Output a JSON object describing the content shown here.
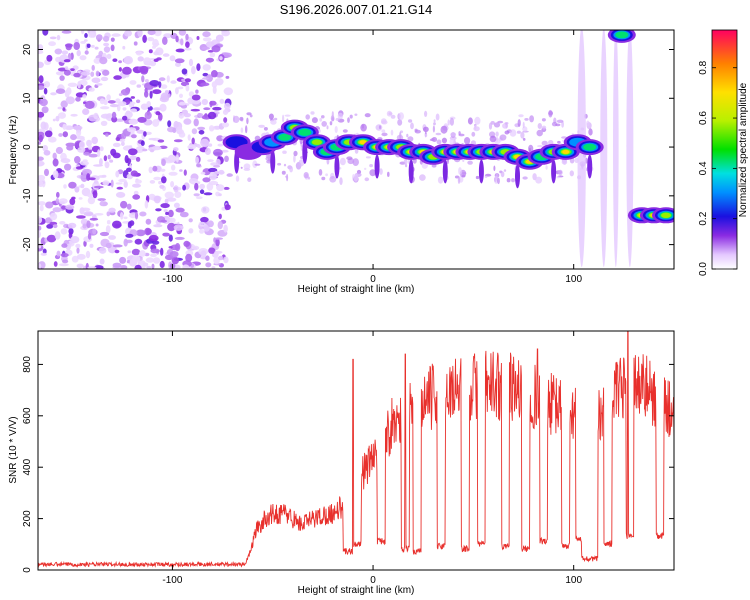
{
  "title": "S196.2026.007.01.21.G14",
  "chart_data": [
    {
      "type": "heatmap",
      "xlabel": "Height of straight line (km)",
      "ylabel": "Frequency (Hz)",
      "xlim": [
        -167,
        150
      ],
      "ylim": [
        -25,
        24
      ],
      "xticks": [
        -100,
        0,
        100
      ],
      "yticks": [
        20,
        10,
        0,
        -10,
        -20
      ],
      "colorbar": {
        "label": "Normalized spectral amplitude",
        "range": [
          0,
          0.95
        ],
        "ticks": [
          0.0,
          0.2,
          0.4,
          0.6,
          0.8
        ]
      },
      "ridge": [
        {
          "x": -68,
          "f": 1,
          "a": 0.25
        },
        {
          "x": -62,
          "f": -1,
          "a": 0.2
        },
        {
          "x": -55,
          "f": 0,
          "a": 0.3
        },
        {
          "x": -50,
          "f": 1,
          "a": 0.35
        },
        {
          "x": -44,
          "f": 2,
          "a": 0.45
        },
        {
          "x": -39,
          "f": 4,
          "a": 0.6
        },
        {
          "x": -34,
          "f": 3,
          "a": 0.55
        },
        {
          "x": -28,
          "f": 1,
          "a": 0.6
        },
        {
          "x": -23,
          "f": -1,
          "a": 0.5
        },
        {
          "x": -18,
          "f": 0,
          "a": 0.55
        },
        {
          "x": -12,
          "f": 1,
          "a": 0.7
        },
        {
          "x": -5,
          "f": 1,
          "a": 0.75
        },
        {
          "x": 2,
          "f": 0,
          "a": 0.8
        },
        {
          "x": 8,
          "f": 0,
          "a": 0.85
        },
        {
          "x": 14,
          "f": 0,
          "a": 0.7
        },
        {
          "x": 19,
          "f": -1,
          "a": 0.75
        },
        {
          "x": 25,
          "f": -1,
          "a": 0.8
        },
        {
          "x": 30,
          "f": -2,
          "a": 0.6
        },
        {
          "x": 36,
          "f": -1,
          "a": 0.8
        },
        {
          "x": 42,
          "f": -1,
          "a": 0.85
        },
        {
          "x": 48,
          "f": -1,
          "a": 0.75
        },
        {
          "x": 54,
          "f": -1,
          "a": 0.6
        },
        {
          "x": 60,
          "f": -1,
          "a": 0.8
        },
        {
          "x": 66,
          "f": -1,
          "a": 0.7
        },
        {
          "x": 72,
          "f": -2,
          "a": 0.75
        },
        {
          "x": 78,
          "f": -3,
          "a": 0.8
        },
        {
          "x": 84,
          "f": -2,
          "a": 0.55
        },
        {
          "x": 90,
          "f": -1,
          "a": 0.6
        },
        {
          "x": 96,
          "f": -1,
          "a": 0.75
        },
        {
          "x": 102,
          "f": 1,
          "a": 0.35
        },
        {
          "x": 108,
          "f": 0,
          "a": 0.45
        }
      ],
      "noise_xmax": -72,
      "upper_feature": {
        "x": 124,
        "f": 23,
        "a": 0.5
      },
      "low_branch": [
        {
          "x": 134,
          "f": -14,
          "a": 0.8
        },
        {
          "x": 140,
          "f": -14,
          "a": 0.75
        },
        {
          "x": 146,
          "f": -14,
          "a": 0.7
        }
      ]
    },
    {
      "type": "line",
      "xlabel": "Height of straight line (km)",
      "ylabel": "SNR (10 * V/V)",
      "xlim": [
        -167,
        150
      ],
      "ylim": [
        0,
        930
      ],
      "xticks": [
        -100,
        0,
        100
      ],
      "yticks": [
        0,
        200,
        400,
        600,
        800
      ],
      "color": "#e8302c",
      "envelope": [
        [
          -167,
          22
        ],
        [
          -80,
          22
        ],
        [
          -64,
          22
        ],
        [
          -62,
          60
        ],
        [
          -58,
          180
        ],
        [
          -52,
          240
        ],
        [
          -44,
          250
        ],
        [
          -36,
          200
        ],
        [
          -28,
          230
        ],
        [
          -20,
          250
        ],
        [
          -12,
          300
        ],
        [
          -8,
          400
        ],
        [
          -2,
          460
        ],
        [
          4,
          560
        ],
        [
          10,
          640
        ],
        [
          20,
          700
        ],
        [
          30,
          760
        ],
        [
          40,
          790
        ],
        [
          50,
          800
        ],
        [
          60,
          810
        ],
        [
          70,
          800
        ],
        [
          80,
          760
        ],
        [
          90,
          720
        ],
        [
          100,
          690
        ],
        [
          106,
          640
        ],
        [
          112,
          680
        ],
        [
          118,
          740
        ],
        [
          124,
          790
        ],
        [
          130,
          830
        ],
        [
          140,
          770
        ],
        [
          150,
          690
        ]
      ],
      "dips": [
        {
          "x": -12,
          "w": 3,
          "v": 60
        },
        {
          "x": -8,
          "w": 2,
          "v": 90
        },
        {
          "x": 4,
          "w": 2,
          "v": 100
        },
        {
          "x": 16,
          "w": 2,
          "v": 70
        },
        {
          "x": 22,
          "w": 2,
          "v": 60
        },
        {
          "x": 34,
          "w": 2,
          "v": 80
        },
        {
          "x": 46,
          "w": 2,
          "v": 70
        },
        {
          "x": 54,
          "w": 2,
          "v": 90
        },
        {
          "x": 66,
          "w": 2,
          "v": 80
        },
        {
          "x": 76,
          "w": 2,
          "v": 70
        },
        {
          "x": 85,
          "w": 2,
          "v": 100
        },
        {
          "x": 96,
          "w": 2,
          "v": 80
        },
        {
          "x": 103,
          "w": 2,
          "v": 110
        },
        {
          "x": 108,
          "w": 4,
          "v": 30
        },
        {
          "x": 117,
          "w": 2,
          "v": 90
        },
        {
          "x": 128,
          "w": 2,
          "v": 120
        },
        {
          "x": 143,
          "w": 2,
          "v": 120
        }
      ],
      "spikes": [
        {
          "x": -10,
          "v": 820
        },
        {
          "x": 16,
          "v": 840
        },
        {
          "x": 82,
          "v": 860
        },
        {
          "x": 127,
          "v": 930
        }
      ]
    }
  ]
}
